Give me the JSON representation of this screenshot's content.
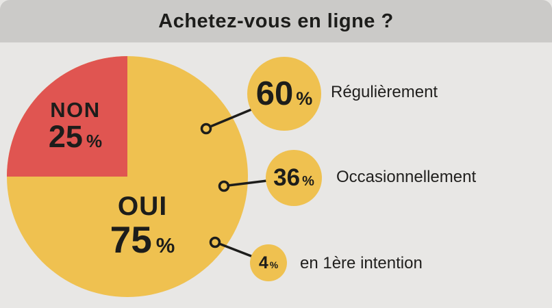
{
  "header": {
    "title": "Achetez-vous en ligne ?"
  },
  "chart_data": {
    "type": "pie",
    "title": "Achetez-vous en ligne ?",
    "slices": [
      {
        "label": "OUI",
        "value": 75,
        "unit": "%",
        "color": "#efc150"
      },
      {
        "label": "NON",
        "value": 25,
        "unit": "%",
        "color": "#e05551"
      }
    ],
    "callouts": [
      {
        "value": 60,
        "unit": "%",
        "label": "Régulièrement"
      },
      {
        "value": 36,
        "unit": "%",
        "label": "Occasionnellement"
      },
      {
        "value": 4,
        "unit": "%",
        "label": "en 1ère intention"
      }
    ],
    "legend_position": "right",
    "grid": false,
    "colors": {
      "background": "#e8e7e5",
      "banner": "#cbcac8",
      "text": "#1d1d1b",
      "connector": "#1d1d1b"
    }
  }
}
